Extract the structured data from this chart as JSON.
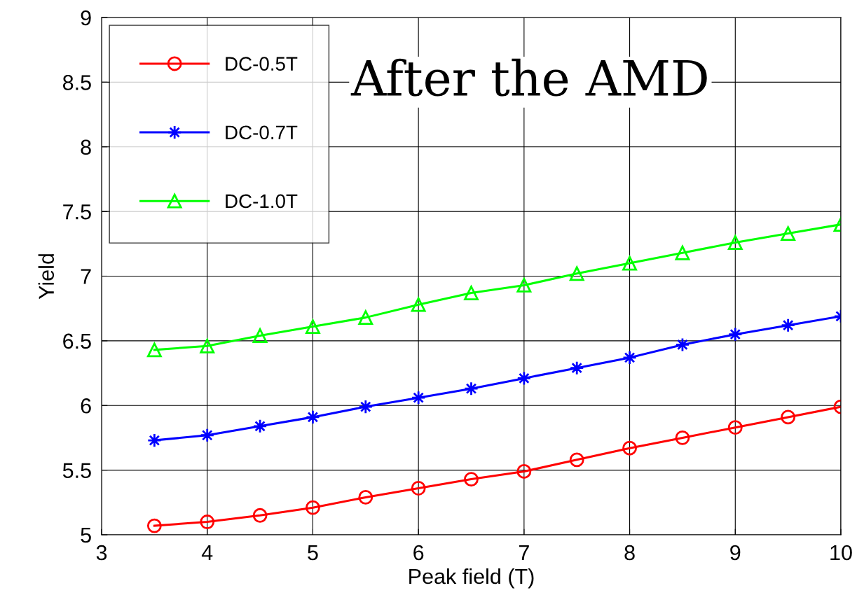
{
  "chart_data": {
    "type": "line",
    "xlabel": "Peak field (T)",
    "ylabel": "Yield",
    "annotations": [
      "After the AMD"
    ],
    "x": [
      3.5,
      4,
      4.5,
      5,
      5.5,
      6,
      6.5,
      7,
      7.5,
      8,
      8.5,
      9,
      9.5,
      10
    ],
    "series": [
      {
        "name": "DC-0.5T",
        "color": "#ff0000",
        "marker": "circle",
        "values": [
          5.07,
          5.1,
          5.15,
          5.21,
          5.29,
          5.36,
          5.43,
          5.49,
          5.58,
          5.67,
          5.75,
          5.83,
          5.91,
          5.99
        ]
      },
      {
        "name": "DC-0.7T",
        "color": "#0000ff",
        "marker": "star",
        "values": [
          5.73,
          5.77,
          5.84,
          5.91,
          5.99,
          6.06,
          6.13,
          6.21,
          6.29,
          6.37,
          6.47,
          6.55,
          6.62,
          6.69
        ]
      },
      {
        "name": "DC-1.0T",
        "color": "#00ff00",
        "marker": "triangle",
        "values": [
          6.43,
          6.46,
          6.54,
          6.61,
          6.68,
          6.78,
          6.87,
          6.93,
          7.02,
          7.1,
          7.18,
          7.26,
          7.33,
          7.4
        ]
      }
    ],
    "xlim": [
      3,
      10
    ],
    "xticks": [
      3,
      4,
      5,
      6,
      7,
      8,
      9,
      10
    ],
    "ylim": [
      5,
      9
    ],
    "yticks": [
      5,
      {
        "value": 5.5,
        "label": "5.5"
      },
      6,
      {
        "value": 6.5,
        "label": "6.5"
      },
      7,
      {
        "value": 7.5,
        "label": "7.5"
      },
      8,
      {
        "value": 8.5,
        "label": "8.5"
      },
      9
    ],
    "grid": true,
    "legend": "top left",
    "line_style": "solid"
  }
}
